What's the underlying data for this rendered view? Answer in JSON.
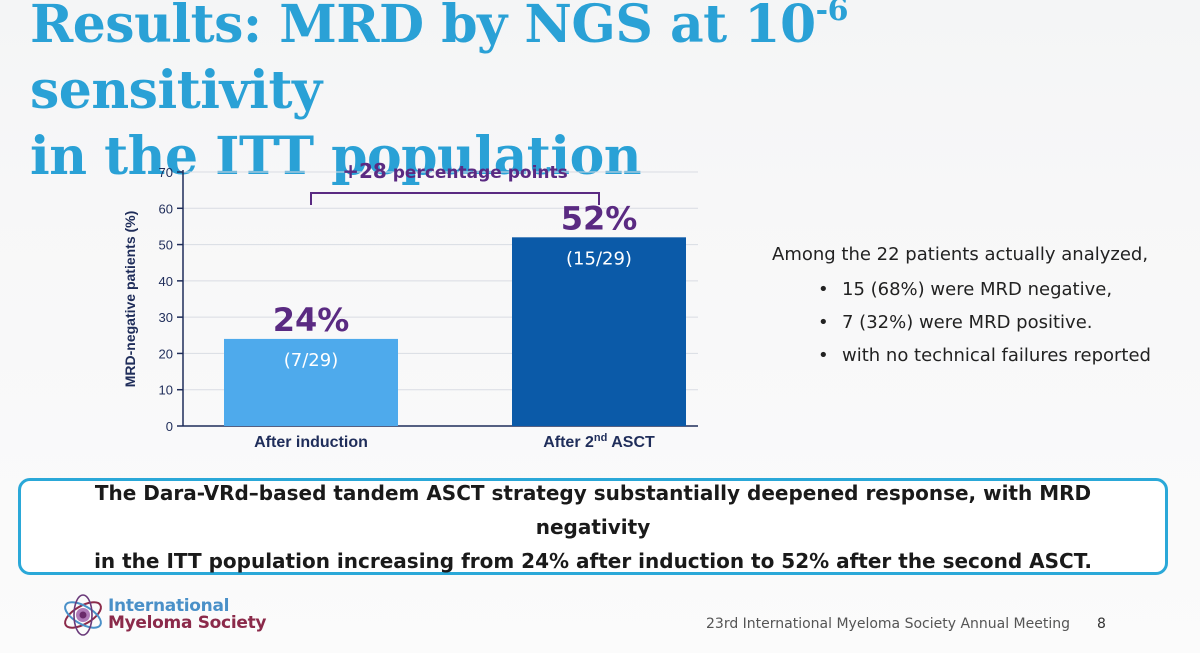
{
  "slide": {
    "title_line1_pre": "Results: MRD by NGS at 10",
    "title_exponent": "-6",
    "title_line1_post": " sensitivity",
    "title_line2": "in the ITT population"
  },
  "chart_data": {
    "type": "bar",
    "categories": [
      "After induction",
      "After 2nd ASCT"
    ],
    "category_labels": [
      {
        "main": "After induction",
        "sup": "",
        "tail": ""
      },
      {
        "main": "After 2",
        "sup": "nd",
        "tail": " ASCT"
      }
    ],
    "values": [
      24,
      52
    ],
    "value_labels": [
      "24%",
      "52%"
    ],
    "sub_labels": [
      "(7/29)",
      "(15/29)"
    ],
    "bar_colors": [
      "#4eaaec",
      "#0b5aa8"
    ],
    "ylabel": "MRD-negative patients (%)",
    "ylim": [
      0,
      70
    ],
    "yticks": [
      0,
      10,
      20,
      30,
      40,
      50,
      60,
      70
    ],
    "grid": true,
    "annotation": {
      "prefix": "+",
      "number": "28",
      "text": " percentage points",
      "color": "#5a2a82"
    },
    "value_label_color": "#5a2a82"
  },
  "side_text": {
    "lead": "Among the 22 patients actually analyzed,",
    "bullets": [
      "15 (68%) were MRD negative,",
      "7 (32%) were MRD positive.",
      "with no technical failures reported"
    ]
  },
  "conclusion": {
    "line1": "The Dara-VRd–based tandem ASCT strategy substantially deepened response, with MRD negativity",
    "line2": "in the ITT population increasing from 24% after induction to 52% after the second ASCT.",
    "border_color": "#2aa8d8"
  },
  "footer": {
    "logo_line1": "International",
    "logo_line2": "Myeloma Society",
    "logo_icon": "myeloma-society-logo-icon",
    "meeting": "23rd International Myeloma Society Annual Meeting",
    "page": "8"
  },
  "colors": {
    "title": "#2aa1d6",
    "axis": "#1f2d5a",
    "accent_purple": "#5a2a82"
  }
}
